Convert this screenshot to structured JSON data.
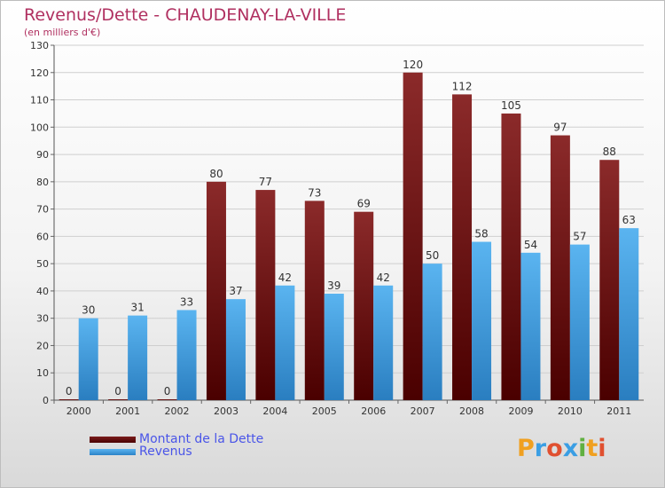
{
  "chart_data": {
    "type": "bar",
    "title": "Revenus/Dette - CHAUDENAY-LA-VILLE",
    "subtitle": "(en milliers d'€)",
    "categories": [
      "2000",
      "2001",
      "2002",
      "2003",
      "2004",
      "2005",
      "2006",
      "2007",
      "2008",
      "2009",
      "2010",
      "2011"
    ],
    "series": [
      {
        "name": "Montant de la Dette",
        "color": "#7a1c1c",
        "values": [
          0,
          0,
          0,
          80,
          77,
          73,
          69,
          120,
          112,
          105,
          97,
          88
        ]
      },
      {
        "name": "Revenus",
        "color": "#3a9ee4",
        "values": [
          30,
          31,
          33,
          37,
          42,
          39,
          42,
          50,
          58,
          54,
          57,
          63
        ]
      }
    ],
    "ylim": [
      0,
      130
    ],
    "yticks": [
      0,
      10,
      20,
      30,
      40,
      50,
      60,
      70,
      80,
      90,
      100,
      110,
      120,
      130
    ],
    "grid": true,
    "legend_position": "bottom-left"
  },
  "logo_text": "Proxiti",
  "logo_letters": [
    {
      "ch": "P",
      "color": "#f0a020"
    },
    {
      "ch": "r",
      "color": "#3a9ee4"
    },
    {
      "ch": "o",
      "color": "#e05030"
    },
    {
      "ch": "x",
      "color": "#3a9ee4"
    },
    {
      "ch": "i",
      "color": "#60b040"
    },
    {
      "ch": "t",
      "color": "#f0a020"
    },
    {
      "ch": "i",
      "color": "#e05030"
    }
  ]
}
